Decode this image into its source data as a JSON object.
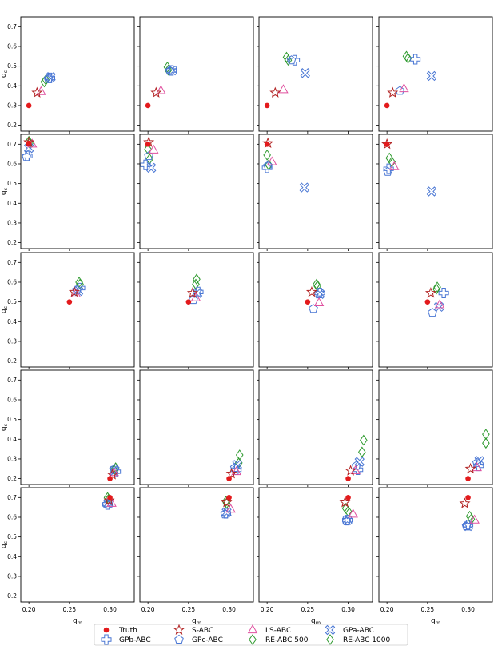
{
  "chart_data": {
    "type": "scatter",
    "layout": {
      "rows": 5,
      "cols": 4
    },
    "xlabel": "q_m",
    "ylabel": "q_c",
    "xlim": [
      0.19,
      0.33
    ],
    "ylim": [
      0.17,
      0.75
    ],
    "xticks": [
      "0.20",
      "0.25",
      "0.30"
    ],
    "xtick_values": [
      0.2,
      0.25,
      0.3
    ],
    "yticks": [
      "0.2",
      "0.3",
      "0.4",
      "0.5",
      "0.6",
      "0.7"
    ],
    "ytick_values": [
      0.2,
      0.3,
      0.4,
      0.5,
      0.6,
      0.7
    ],
    "legend": {
      "placement": "bottom-center",
      "entries": [
        {
          "key": "truth",
          "label": "Truth",
          "marker": "circle",
          "color": "#e31a1c"
        },
        {
          "key": "gpb",
          "label": "GPb-ABC",
          "marker": "plus",
          "color": "#4a77d4"
        },
        {
          "key": "sabc",
          "label": "S-ABC",
          "marker": "star",
          "color": "#b22222"
        },
        {
          "key": "gpc",
          "label": "GPc-ABC",
          "marker": "pentagon",
          "color": "#4a77d4"
        },
        {
          "key": "ls",
          "label": "LS-ABC",
          "marker": "triangle",
          "color": "#e0509f"
        },
        {
          "key": "re500",
          "label": "RE-ABC 500",
          "marker": "diamond",
          "color": "#2e9a2e"
        },
        {
          "key": "gpa",
          "label": "GPa-ABC",
          "marker": "cross",
          "color": "#4a77d4"
        },
        {
          "key": "re1000",
          "label": "RE-ABC 1000",
          "marker": "diamond",
          "color": "#2e9a2e"
        }
      ]
    },
    "panels": [
      {
        "row": 0,
        "col": 0,
        "truth": [
          0.2,
          0.3
        ],
        "sabc": [
          0.21,
          0.365
        ],
        "ls": [
          0.215,
          0.37
        ],
        "re500": [
          0.219,
          0.42
        ],
        "re1000": [
          0.221,
          0.43
        ],
        "gpc": [
          0.224,
          0.435
        ],
        "gpb": [
          0.226,
          0.44
        ],
        "gpa": [
          0.227,
          0.445
        ]
      },
      {
        "row": 0,
        "col": 1,
        "truth": [
          0.2,
          0.3
        ],
        "sabc": [
          0.21,
          0.365
        ],
        "ls": [
          0.216,
          0.375
        ],
        "re500": [
          0.224,
          0.495
        ],
        "re1000": [
          0.225,
          0.48
        ],
        "gpc": [
          0.227,
          0.477
        ],
        "gpb": [
          0.229,
          0.478
        ],
        "gpa": [
          0.23,
          0.478
        ]
      },
      {
        "row": 0,
        "col": 2,
        "truth": [
          0.2,
          0.3
        ],
        "sabc": [
          0.21,
          0.365
        ],
        "ls": [
          0.22,
          0.38
        ],
        "re500": [
          0.224,
          0.545
        ],
        "re1000": [
          0.226,
          0.53
        ],
        "gpc": [
          0.23,
          0.53
        ],
        "gpb": [
          0.234,
          0.53
        ],
        "gpa": [
          0.247,
          0.465
        ]
      },
      {
        "row": 0,
        "col": 3,
        "truth": [
          0.2,
          0.3
        ],
        "sabc": [
          0.207,
          0.365
        ],
        "ls": [
          0.221,
          0.385
        ],
        "gpc": [
          0.216,
          0.375
        ],
        "re500": [
          0.224,
          0.55
        ],
        "re1000": [
          0.226,
          0.54
        ],
        "gpb": [
          0.235,
          0.535
        ],
        "gpa": [
          0.255,
          0.45
        ]
      },
      {
        "row": 1,
        "col": 0,
        "truth": [
          0.2,
          0.705
        ],
        "sabc": [
          0.2,
          0.71
        ],
        "ls": [
          0.204,
          0.7
        ],
        "re500": [
          0.2,
          0.715
        ],
        "re1000": [
          0.201,
          0.705
        ],
        "gpc": [
          0.197,
          0.635
        ],
        "gpb": [
          0.198,
          0.64
        ],
        "gpa": [
          0.2,
          0.68
        ]
      },
      {
        "row": 1,
        "col": 1,
        "truth": [
          0.2,
          0.7
        ],
        "sabc": [
          0.201,
          0.71
        ],
        "ls": [
          0.207,
          0.67
        ],
        "re500": [
          0.2,
          0.675
        ],
        "re1000": [
          0.202,
          0.625
        ],
        "gpc": [
          0.201,
          0.64
        ],
        "gpb": [
          0.197,
          0.595
        ],
        "gpa": [
          0.204,
          0.58
        ]
      },
      {
        "row": 1,
        "col": 2,
        "truth": [
          0.2,
          0.7
        ],
        "sabc": [
          0.201,
          0.705
        ],
        "ls": [
          0.206,
          0.61
        ],
        "re500": [
          0.2,
          0.645
        ],
        "re1000": [
          0.202,
          0.595
        ],
        "gpc": [
          0.201,
          0.59
        ],
        "gpb": [
          0.2,
          0.58
        ],
        "gpa": [
          0.246,
          0.48
        ]
      },
      {
        "row": 1,
        "col": 3,
        "truth": [
          0.2,
          0.7
        ],
        "sabc": [
          0.2,
          0.7
        ],
        "ls": [
          0.209,
          0.585
        ],
        "re500": [
          0.203,
          0.63
        ],
        "re1000": [
          0.206,
          0.61
        ],
        "gpc": [
          0.201,
          0.56
        ],
        "gpb": [
          0.202,
          0.575
        ],
        "gpa": [
          0.255,
          0.46
        ]
      },
      {
        "row": 2,
        "col": 0,
        "truth": [
          0.25,
          0.5
        ],
        "sabc": [
          0.256,
          0.55
        ],
        "ls": [
          0.258,
          0.54
        ],
        "re500": [
          0.262,
          0.6
        ],
        "re1000": [
          0.263,
          0.59
        ],
        "gpc": [
          0.259,
          0.56
        ],
        "gpb": [
          0.263,
          0.57
        ],
        "gpa": [
          0.261,
          0.555
        ]
      },
      {
        "row": 2,
        "col": 1,
        "truth": [
          0.25,
          0.5
        ],
        "sabc": [
          0.255,
          0.545
        ],
        "ls": [
          0.259,
          0.52
        ],
        "re500": [
          0.26,
          0.615
        ],
        "re1000": [
          0.259,
          0.59
        ],
        "gpc": [
          0.256,
          0.51
        ],
        "gpb": [
          0.262,
          0.55
        ],
        "gpa": [
          0.261,
          0.545
        ]
      },
      {
        "row": 2,
        "col": 2,
        "truth": [
          0.25,
          0.5
        ],
        "sabc": [
          0.255,
          0.55
        ],
        "ls": [
          0.264,
          0.495
        ],
        "re500": [
          0.261,
          0.59
        ],
        "re1000": [
          0.262,
          0.58
        ],
        "gpc": [
          0.257,
          0.465
        ],
        "gpb": [
          0.265,
          0.545
        ],
        "gpa": [
          0.265,
          0.54
        ]
      },
      {
        "row": 2,
        "col": 3,
        "truth": [
          0.25,
          0.5
        ],
        "sabc": [
          0.254,
          0.545
        ],
        "ls": [
          0.265,
          0.485
        ],
        "re500": [
          0.262,
          0.575
        ],
        "re1000": [
          0.261,
          0.565
        ],
        "gpc": [
          0.256,
          0.445
        ],
        "gpb": [
          0.27,
          0.545
        ],
        "gpa": [
          0.264,
          0.475
        ]
      },
      {
        "row": 3,
        "col": 0,
        "truth": [
          0.3,
          0.2
        ],
        "sabc": [
          0.303,
          0.22
        ],
        "ls": [
          0.305,
          0.23
        ],
        "re500": [
          0.307,
          0.255
        ],
        "re1000": [
          0.305,
          0.245
        ],
        "gpc": [
          0.306,
          0.25
        ],
        "gpb": [
          0.307,
          0.235
        ],
        "gpa": [
          0.305,
          0.24
        ]
      },
      {
        "row": 3,
        "col": 1,
        "truth": [
          0.3,
          0.2
        ],
        "sabc": [
          0.303,
          0.225
        ],
        "ls": [
          0.309,
          0.235
        ],
        "re500": [
          0.313,
          0.32
        ],
        "re1000": [
          0.312,
          0.28
        ],
        "gpc": [
          0.307,
          0.255
        ],
        "gpb": [
          0.309,
          0.245
        ],
        "gpa": [
          0.31,
          0.27
        ]
      },
      {
        "row": 3,
        "col": 2,
        "truth": [
          0.3,
          0.2
        ],
        "sabc": [
          0.303,
          0.24
        ],
        "ls": [
          0.309,
          0.24
        ],
        "re500": [
          0.319,
          0.395
        ],
        "re1000": [
          0.317,
          0.335
        ],
        "gpc": [
          0.31,
          0.265
        ],
        "gpb": [
          0.312,
          0.245
        ],
        "gpa": [
          0.314,
          0.285
        ]
      },
      {
        "row": 3,
        "col": 3,
        "truth": [
          0.3,
          0.2
        ],
        "sabc": [
          0.303,
          0.25
        ],
        "ls": [
          0.311,
          0.255
        ],
        "re500": [
          0.322,
          0.425
        ],
        "re1000": [
          0.322,
          0.38
        ],
        "gpc": [
          0.311,
          0.28
        ],
        "gpb": [
          0.313,
          0.265
        ],
        "gpa": [
          0.314,
          0.29
        ]
      },
      {
        "row": 4,
        "col": 0,
        "truth": [
          0.3,
          0.7
        ],
        "sabc": [
          0.299,
          0.685
        ],
        "ls": [
          0.302,
          0.67
        ],
        "re500": [
          0.297,
          0.7
        ],
        "re1000": [
          0.298,
          0.69
        ],
        "gpc": [
          0.296,
          0.665
        ],
        "gpb": [
          0.297,
          0.665
        ],
        "gpa": [
          0.298,
          0.67
        ]
      },
      {
        "row": 4,
        "col": 1,
        "truth": [
          0.3,
          0.7
        ],
        "sabc": [
          0.297,
          0.675
        ],
        "ls": [
          0.302,
          0.64
        ],
        "re500": [
          0.296,
          0.68
        ],
        "re1000": [
          0.297,
          0.67
        ],
        "gpc": [
          0.295,
          0.615
        ],
        "gpb": [
          0.296,
          0.62
        ],
        "gpa": [
          0.297,
          0.625
        ]
      },
      {
        "row": 4,
        "col": 2,
        "truth": [
          0.3,
          0.7
        ],
        "sabc": [
          0.296,
          0.675
        ],
        "ls": [
          0.306,
          0.615
        ],
        "re500": [
          0.297,
          0.645
        ],
        "re1000": [
          0.3,
          0.63
        ],
        "gpc": [
          0.298,
          0.58
        ],
        "gpb": [
          0.299,
          0.585
        ],
        "gpa": [
          0.299,
          0.585
        ]
      },
      {
        "row": 4,
        "col": 3,
        "truth": [
          0.3,
          0.7
        ],
        "sabc": [
          0.296,
          0.67
        ],
        "ls": [
          0.308,
          0.585
        ],
        "re500": [
          0.302,
          0.605
        ],
        "re1000": [
          0.304,
          0.59
        ],
        "gpc": [
          0.298,
          0.555
        ],
        "gpb": [
          0.3,
          0.56
        ],
        "gpa": [
          0.3,
          0.555
        ]
      }
    ]
  }
}
